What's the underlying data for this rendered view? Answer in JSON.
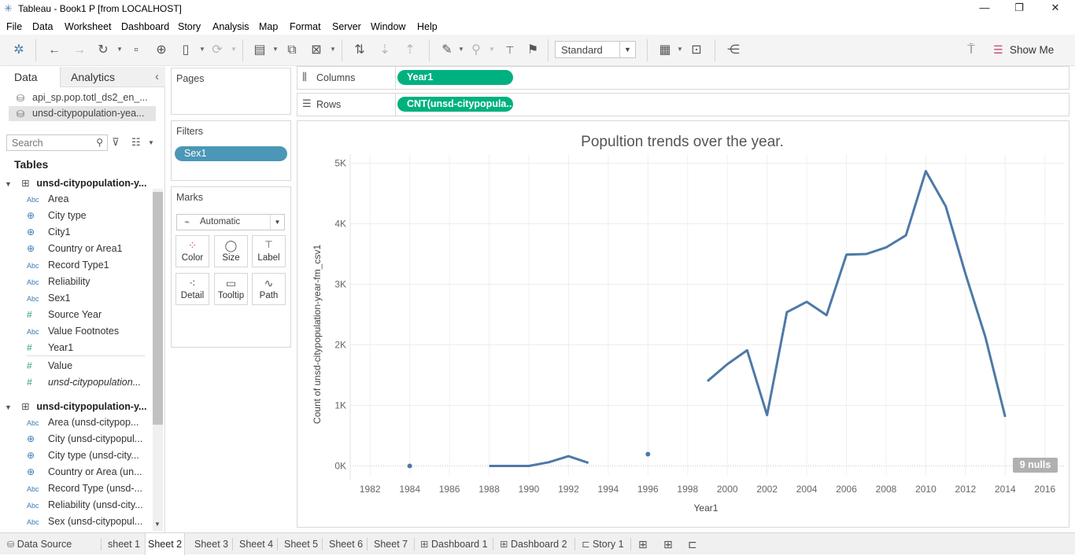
{
  "window": {
    "title": "Tableau - Book1 P [from LOCALHOST]",
    "controls": {
      "minimize": "—",
      "restore": "❐",
      "close": "✕"
    }
  },
  "menu": [
    "File",
    "Data",
    "Worksheet",
    "Dashboard",
    "Story",
    "Analysis",
    "Map",
    "Format",
    "Server",
    "Window",
    "Help"
  ],
  "toolbar": {
    "fit": "Standard",
    "show_me": "Show Me",
    "icons": [
      "tableau-logo-icon",
      "undo-icon",
      "redo-icon",
      "replay-icon",
      "save-icon",
      "new-datasource-icon",
      "pause-updates-icon",
      "refresh-icon",
      "new-worksheet-icon",
      "duplicate-sheet-icon",
      "clear-sheet-icon",
      "swap-rows-columns-icon",
      "sort-ascending-icon",
      "sort-descending-icon",
      "highlight-icon",
      "group-members-icon",
      "show-mark-labels-icon",
      "pin-axis-icon",
      "show-cards-icon",
      "presentation-mode-icon",
      "share-icon",
      "format-painter-icon"
    ]
  },
  "left_pane": {
    "tabs": {
      "data": "Data",
      "analytics": "Analytics",
      "collapse": "‹"
    },
    "datasources": [
      "api_sp.pop.totl_ds2_en_...",
      "unsd-citypopulation-yea..."
    ],
    "search_placeholder": "Search",
    "tables_heading": "Tables",
    "tables": [
      {
        "name": "unsd-citypopulation-y...",
        "fields": [
          {
            "type": "Abc",
            "name": "Area"
          },
          {
            "type": "geo",
            "name": "City type"
          },
          {
            "type": "geo",
            "name": "City1"
          },
          {
            "type": "geo",
            "name": "Country or Area1"
          },
          {
            "type": "Abc",
            "name": "Record Type1"
          },
          {
            "type": "Abc",
            "name": "Reliability"
          },
          {
            "type": "Abc",
            "name": "Sex1"
          },
          {
            "type": "#",
            "name": "Source Year"
          },
          {
            "type": "Abc",
            "name": "Value Footnotes"
          },
          {
            "type": "#",
            "name": "Year1"
          },
          {
            "type": "#",
            "name": "Value"
          },
          {
            "type": "#",
            "name": "unsd-citypopulation..."
          }
        ]
      },
      {
        "name": "unsd-citypopulation-y...",
        "fields": [
          {
            "type": "Abc",
            "name": "Area (unsd-citypop..."
          },
          {
            "type": "geo",
            "name": "City (unsd-citypopul..."
          },
          {
            "type": "geo",
            "name": "City type (unsd-city..."
          },
          {
            "type": "geo",
            "name": "Country or Area (un..."
          },
          {
            "type": "Abc",
            "name": "Record Type (unsd-..."
          },
          {
            "type": "Abc",
            "name": "Reliability (unsd-city..."
          },
          {
            "type": "Abc",
            "name": "Sex (unsd-citypopul..."
          }
        ]
      }
    ]
  },
  "cards": {
    "pages": "Pages",
    "filters": "Filters",
    "filter_pill": "Sex1",
    "marks": "Marks",
    "mark_type": "Automatic",
    "mark_buttons": [
      "Color",
      "Size",
      "Label",
      "Detail",
      "Tooltip",
      "Path"
    ]
  },
  "shelves": {
    "columns_label": "Columns",
    "columns_pill": "Year1",
    "rows_label": "Rows",
    "rows_pill": "CNT(unsd-citypopula.."
  },
  "nulls_badge": "9 nulls",
  "chart_data": {
    "type": "line",
    "title": "Popultion trends over the year.",
    "xlabel": "Year1",
    "ylabel": "Count of unsd-citypopulation-year-fm_csv1",
    "xlim": [
      1981,
      2017
    ],
    "ylim": [
      -150,
      5150
    ],
    "x_ticks": [
      1982,
      1984,
      1986,
      1988,
      1990,
      1992,
      1994,
      1996,
      1998,
      2000,
      2002,
      2004,
      2006,
      2008,
      2010,
      2012,
      2014,
      2016
    ],
    "y_ticks": [
      {
        "v": 0,
        "label": "0K"
      },
      {
        "v": 1000,
        "label": "1K"
      },
      {
        "v": 2000,
        "label": "2K"
      },
      {
        "v": 3000,
        "label": "3K"
      },
      {
        "v": 4000,
        "label": "4K"
      },
      {
        "v": 5000,
        "label": "5K"
      }
    ],
    "grid": true,
    "line_color": "#4e79a7",
    "segments": [
      [
        [
          1984,
          0
        ]
      ],
      [
        [
          1988,
          0
        ],
        [
          1989,
          0
        ],
        [
          1990,
          0
        ],
        [
          1991,
          60
        ],
        [
          1992,
          160
        ],
        [
          1993,
          50
        ]
      ],
      [
        [
          1996,
          195
        ]
      ],
      [
        [
          1999,
          1400
        ],
        [
          2000,
          1680
        ],
        [
          2001,
          1910
        ],
        [
          2002,
          840
        ],
        [
          2003,
          2540
        ],
        [
          2004,
          2710
        ],
        [
          2005,
          2490
        ],
        [
          2006,
          3490
        ],
        [
          2007,
          3500
        ],
        [
          2008,
          3610
        ],
        [
          2009,
          3810
        ],
        [
          2010,
          4870
        ],
        [
          2011,
          4290
        ],
        [
          2012,
          3170
        ],
        [
          2013,
          2130
        ],
        [
          2014,
          810
        ]
      ]
    ]
  },
  "sheet_tabs": [
    "Data Source",
    "sheet 1",
    "Sheet 2",
    "Sheet 3",
    "Sheet 4",
    "Sheet 5",
    "Sheet 6",
    "Sheet 7",
    "Dashboard 1",
    "Dashboard 2",
    "Story 1"
  ],
  "active_tab": "Sheet 2"
}
